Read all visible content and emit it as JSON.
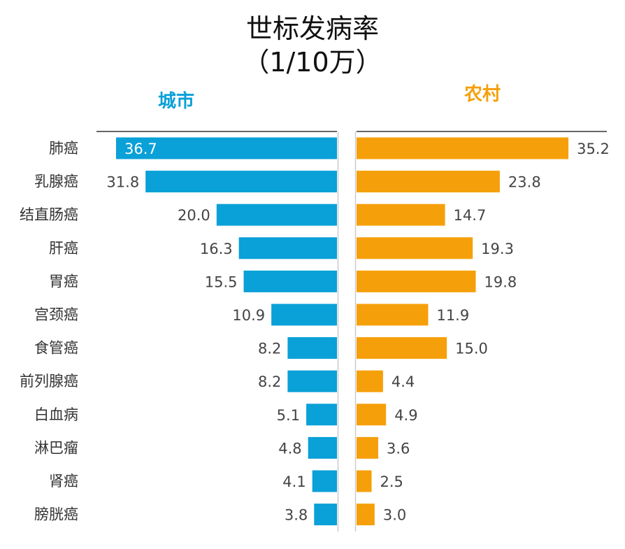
{
  "title": {
    "line1": "世标发病率",
    "line2": "（1/10万）"
  },
  "colors": {
    "urban": "#0aa0d8",
    "rural": "#f5a00a",
    "axis": "#333333",
    "divider": "#cccccc"
  },
  "chart_data": {
    "type": "bar",
    "orientation": "horizontal-mirrored",
    "title": "世标发病率（1/10万）",
    "categories": [
      "肺癌",
      "乳腺癌",
      "结直肠癌",
      "肝癌",
      "胃癌",
      "宫颈癌",
      "食管癌",
      "前列腺癌",
      "白血病",
      "淋巴瘤",
      "肾癌",
      "膀胱癌"
    ],
    "series": [
      {
        "name": "城市",
        "values": [
          36.7,
          31.8,
          20.0,
          16.3,
          15.5,
          10.9,
          8.2,
          8.2,
          5.1,
          4.8,
          4.1,
          3.8
        ]
      },
      {
        "name": "农村",
        "values": [
          35.2,
          23.8,
          14.7,
          19.3,
          19.8,
          11.9,
          15.0,
          4.4,
          4.9,
          3.6,
          2.5,
          3.0
        ]
      }
    ],
    "xlim": [
      0,
      40
    ]
  }
}
